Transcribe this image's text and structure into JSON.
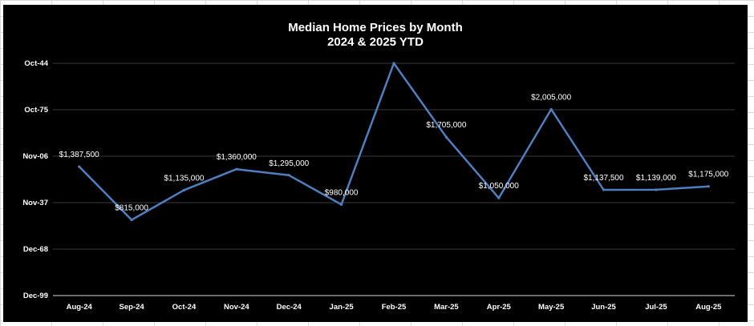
{
  "chart_data": {
    "type": "line",
    "title": "Median Home Prices by Month",
    "subtitle": "2024 & 2025 YTD",
    "categories": [
      "Aug-24",
      "Sep-24",
      "Oct-24",
      "Nov-24",
      "Dec-24",
      "Jan-25",
      "Feb-25",
      "Mar-25",
      "Apr-25",
      "May-25",
      "Jun-25",
      "Jul-25",
      "Aug-25"
    ],
    "values": [
      1387500,
      815000,
      1135000,
      1360000,
      1295000,
      980000,
      2500000,
      1705000,
      1050000,
      2005000,
      1137500,
      1139000,
      1175000
    ],
    "data_labels": [
      "$1,387,500",
      "$815,000",
      "$1,135,000",
      "$1,360,000",
      "$1,295,000",
      "$980,000",
      "",
      "$1,705,000",
      "$1,050,000",
      "$2,005,000",
      "$1,137,500",
      "$1,139,000",
      "$1,175,000"
    ],
    "y_tick_labels": [
      "Oct-44",
      "Oct-75",
      "Nov-06",
      "Nov-37",
      "Dec-68",
      "Dec-99"
    ],
    "ylim": [
      0,
      2500000
    ],
    "grid": true,
    "legend": "none",
    "colors": {
      "background": "#000000",
      "line": "#4f7ec1",
      "gridline": "#3a3a3a",
      "text": "#ffffff"
    }
  }
}
